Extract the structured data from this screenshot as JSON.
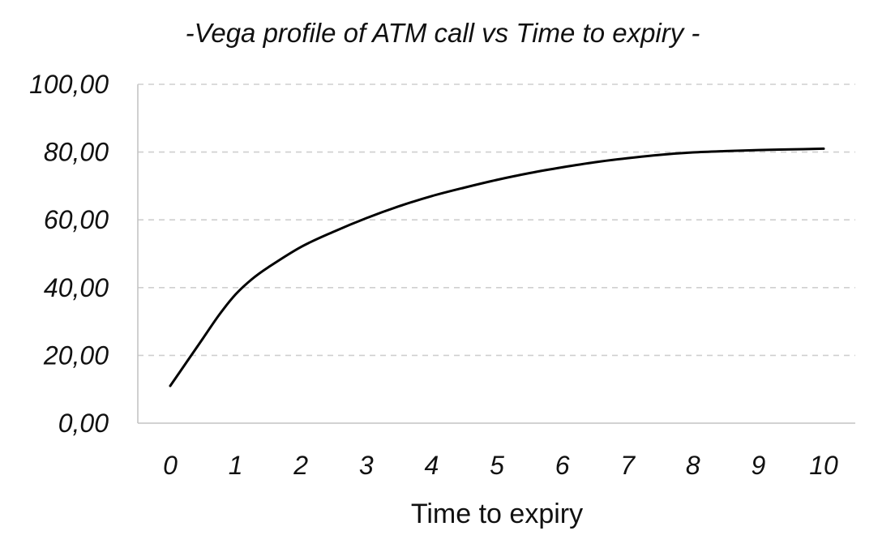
{
  "chart_data": {
    "type": "line",
    "title": "-Vega profile of ATM call vs Time to expiry -",
    "xlabel": "Time to expiry",
    "ylabel": "",
    "ylim": [
      0,
      100
    ],
    "xlim": [
      0,
      10
    ],
    "yticks": [
      "0,00",
      "20,00",
      "40,00",
      "60,00",
      "80,00",
      "100,00"
    ],
    "xticks": [
      "0",
      "1",
      "2",
      "3",
      "4",
      "5",
      "6",
      "7",
      "8",
      "9",
      "10"
    ],
    "grid": true,
    "legend": "none",
    "series": [
      {
        "color": "#000000",
        "x": [
          0,
          0.25,
          0.5,
          0.75,
          1,
          1.25,
          1.5,
          2,
          2.5,
          3,
          3.5,
          4,
          4.5,
          5,
          5.5,
          6,
          6.5,
          7,
          7.5,
          8,
          8.5,
          9,
          9.5,
          10
        ],
        "values": [
          11,
          18,
          25,
          32,
          38,
          42.5,
          46,
          52,
          56.5,
          60.5,
          64,
          67,
          69.5,
          71.8,
          73.8,
          75.5,
          77,
          78.2,
          79.2,
          79.9,
          80.3,
          80.6,
          80.8,
          81
        ]
      }
    ]
  }
}
